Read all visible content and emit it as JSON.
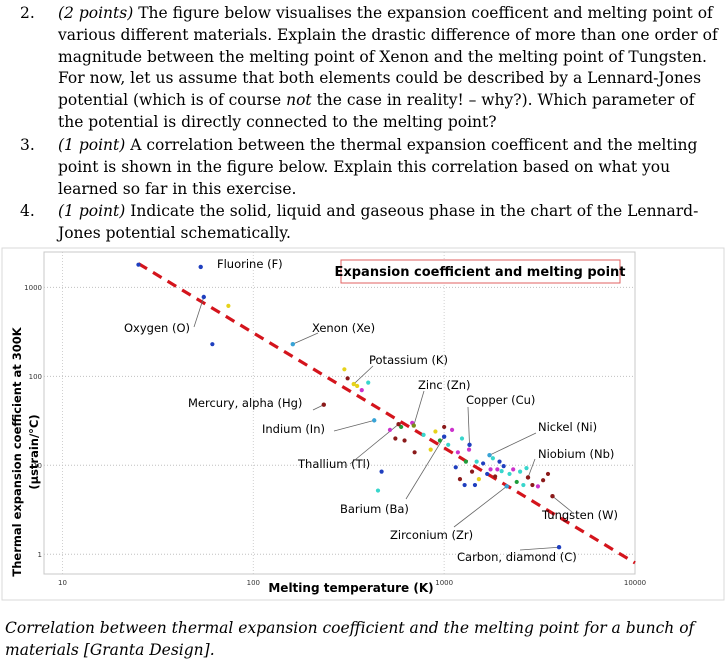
{
  "questions": [
    {
      "number": "2.",
      "points": "(2 points)",
      "before": " The figure below visualises the expansion coefficent and melting point of various different materials. Explain the drastic difference of more than one order of magnitude between the melting point of Xenon and the melting point of Tungsten. For now, let us assume that both elements could be described by a Lennard-Jones potential (which is of course ",
      "emphasis": "not",
      "after": " the case in reality! – why?). Which parameter of the potential is directly connected to the melting point?"
    },
    {
      "number": "3.",
      "points": "(1 point)",
      "before": " A correlation between the thermal expansion coefficent and the melting point is shown in the figure below. Explain this correlation based on what you learned so far in this exercise."
    },
    {
      "number": "4.",
      "points": "(1 point)",
      "before": " Indicate the solid, liquid and gaseous phase in the chart of the Lennard-Jones potential schematically."
    }
  ],
  "chart_data": {
    "type": "scatter",
    "title": "Expansion coefficient and melting point",
    "xlabel": "Melting temperature (K)",
    "ylabel": "Thermal expansion coefficient at 300K",
    "ylabel_unit": "(µstrain/°C)",
    "xscale": "log",
    "yscale": "log",
    "xlim": [
      8,
      10000
    ],
    "ylim": [
      0.6,
      2500
    ],
    "x_ticks": [
      10,
      100,
      1000,
      10000
    ],
    "x_tick_labels": [
      "10",
      "100",
      "1000",
      "10000"
    ],
    "y_ticks": [
      1,
      10,
      100,
      1000
    ],
    "y_tick_labels": [
      "1",
      "10",
      "100",
      "1000"
    ],
    "trend_line": {
      "from": [
        25,
        1850
      ],
      "to": [
        10000,
        0.8
      ]
    },
    "labeled_points": [
      {
        "label": "Fluorine (F)",
        "x": 53,
        "y": 1700,
        "color": "#1f3fbf"
      },
      {
        "label": "Oxygen (O)",
        "x": 55,
        "y": 780,
        "color": "#1f3fbf"
      },
      {
        "label": "Xenon (Xe)",
        "x": 161,
        "y": 230,
        "color": "#38a3d6"
      },
      {
        "label": "Potassium (K)",
        "x": 336,
        "y": 82,
        "color": "#e6d21a"
      },
      {
        "label": "Zinc (Zn)",
        "x": 693,
        "y": 28,
        "color": "#7a8a1a"
      },
      {
        "label": "Copper (Cu)",
        "x": 1358,
        "y": 17,
        "color": "#1f3fbf"
      },
      {
        "label": "Mercury, alpha (Hg)",
        "x": 234,
        "y": 48,
        "color": "#8b1a1a"
      },
      {
        "label": "Indium (In)",
        "x": 430,
        "y": 32,
        "color": "#38a3d6"
      },
      {
        "label": "Nickel (Ni)",
        "x": 1728,
        "y": 13,
        "color": "#38a3d6"
      },
      {
        "label": "Niobium (Nb)",
        "x": 2750,
        "y": 7.3,
        "color": "#8b1a1a"
      },
      {
        "label": "Thallium (Tl)",
        "x": 577,
        "y": 29,
        "color": "#8b1a1a"
      },
      {
        "label": "Barium (Ba)",
        "x": 1000,
        "y": 21,
        "color": "#1f3fbf"
      },
      {
        "label": "Tungsten (W)",
        "x": 3695,
        "y": 4.5,
        "color": "#8b1a1a"
      },
      {
        "label": "Zirconium (Zr)",
        "x": 2128,
        "y": 5.8,
        "color": "#38a3d6"
      },
      {
        "label": "Carbon, diamond (C)",
        "x": 4000,
        "y": 1.2,
        "color": "#1f3fbf"
      }
    ],
    "other_points": [
      {
        "x": 25,
        "y": 1800,
        "color": "#1f3fbf"
      },
      {
        "x": 61,
        "y": 230,
        "color": "#1f3fbf"
      },
      {
        "x": 74,
        "y": 620,
        "color": "#e6d21a"
      },
      {
        "x": 300,
        "y": 120,
        "color": "#e6d21a"
      },
      {
        "x": 312,
        "y": 95,
        "color": "#8b1a1a"
      },
      {
        "x": 350,
        "y": 78,
        "color": "#e6d21a"
      },
      {
        "x": 370,
        "y": 70,
        "color": "#cc33cc"
      },
      {
        "x": 400,
        "y": 85,
        "color": "#38d6cc"
      },
      {
        "x": 520,
        "y": 25,
        "color": "#cc33cc"
      },
      {
        "x": 555,
        "y": 20,
        "color": "#8b1a1a"
      },
      {
        "x": 595,
        "y": 27,
        "color": "#1f9c3a"
      },
      {
        "x": 620,
        "y": 19,
        "color": "#8b1a1a"
      },
      {
        "x": 680,
        "y": 30,
        "color": "#cc33cc"
      },
      {
        "x": 700,
        "y": 14,
        "color": "#8b1a1a"
      },
      {
        "x": 780,
        "y": 22,
        "color": "#38d6cc"
      },
      {
        "x": 850,
        "y": 15,
        "color": "#e6d21a"
      },
      {
        "x": 900,
        "y": 24,
        "color": "#e6d21a"
      },
      {
        "x": 950,
        "y": 19,
        "color": "#1f9c3a"
      },
      {
        "x": 1000,
        "y": 27,
        "color": "#8b1a1a"
      },
      {
        "x": 1050,
        "y": 17,
        "color": "#38d6cc"
      },
      {
        "x": 1100,
        "y": 25,
        "color": "#cc33cc"
      },
      {
        "x": 1150,
        "y": 9.5,
        "color": "#1f3fbf"
      },
      {
        "x": 1180,
        "y": 14,
        "color": "#cc33cc"
      },
      {
        "x": 1210,
        "y": 7,
        "color": "#8b1a1a"
      },
      {
        "x": 1240,
        "y": 20,
        "color": "#38d6cc"
      },
      {
        "x": 1280,
        "y": 6,
        "color": "#1f3fbf"
      },
      {
        "x": 1300,
        "y": 11,
        "color": "#1f9c3a"
      },
      {
        "x": 1350,
        "y": 15,
        "color": "#cc33cc"
      },
      {
        "x": 1400,
        "y": 8.5,
        "color": "#8b1a1a"
      },
      {
        "x": 1450,
        "y": 6,
        "color": "#1f3fbf"
      },
      {
        "x": 1480,
        "y": 11,
        "color": "#38d6cc"
      },
      {
        "x": 1520,
        "y": 7,
        "color": "#e6d21a"
      },
      {
        "x": 1600,
        "y": 10.5,
        "color": "#1f3fbf"
      },
      {
        "x": 1680,
        "y": 8,
        "color": "#1f3fbf"
      },
      {
        "x": 1750,
        "y": 9,
        "color": "#cc33cc"
      },
      {
        "x": 1800,
        "y": 12,
        "color": "#38d6cc"
      },
      {
        "x": 1850,
        "y": 7.5,
        "color": "#8b1a1a"
      },
      {
        "x": 1900,
        "y": 9,
        "color": "#cc33cc"
      },
      {
        "x": 1950,
        "y": 11,
        "color": "#1f3fbf"
      },
      {
        "x": 2000,
        "y": 8.6,
        "color": "#38d6cc"
      },
      {
        "x": 2050,
        "y": 9.8,
        "color": "#1f3fbf"
      },
      {
        "x": 2200,
        "y": 8,
        "color": "#38d6cc"
      },
      {
        "x": 2300,
        "y": 9,
        "color": "#cc33cc"
      },
      {
        "x": 2400,
        "y": 6.5,
        "color": "#1f9c3a"
      },
      {
        "x": 2500,
        "y": 8.5,
        "color": "#38d6cc"
      },
      {
        "x": 2600,
        "y": 6,
        "color": "#38d6cc"
      },
      {
        "x": 2700,
        "y": 9.3,
        "color": "#38d6cc"
      },
      {
        "x": 2900,
        "y": 6,
        "color": "#8b1a1a"
      },
      {
        "x": 3100,
        "y": 5.8,
        "color": "#cc33cc"
      },
      {
        "x": 3300,
        "y": 6.8,
        "color": "#8b1a1a"
      },
      {
        "x": 3500,
        "y": 8,
        "color": "#8b1a1a"
      },
      {
        "x": 450,
        "y": 5.2,
        "color": "#38d6cc"
      },
      {
        "x": 470,
        "y": 8.5,
        "color": "#1f3fbf"
      }
    ]
  },
  "caption": "Correlation between thermal expansion coefficient and the melting point for a bunch of materials [Granta Design]."
}
